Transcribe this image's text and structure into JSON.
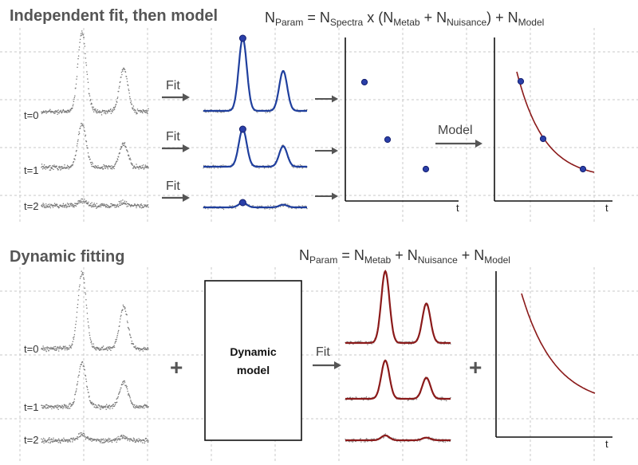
{
  "top": {
    "title": "Independent fit, then model",
    "equation": {
      "parts": [
        {
          "t": "N",
          "sub": false
        },
        {
          "t": "Param",
          "sub": true
        },
        {
          "t": " = N",
          "sub": false
        },
        {
          "t": "Spectra",
          "sub": true
        },
        {
          "t": " x (N",
          "sub": false
        },
        {
          "t": "Metab",
          "sub": true
        },
        {
          "t": " + N",
          "sub": false
        },
        {
          "t": "Nuisance",
          "sub": true
        },
        {
          "t": ") + N",
          "sub": false
        },
        {
          "t": "Model",
          "sub": true
        }
      ]
    },
    "time_labels": [
      "t=0",
      "t=1",
      "t=2"
    ],
    "fit_label": "Fit",
    "model_label": "Model",
    "axis_t_label": "t",
    "amplitudes": [
      1.0,
      0.72,
      0.12
    ],
    "colors": {
      "fit": "#1f3f9e",
      "model": "#8b1a1a",
      "noise": "#777777",
      "point": "#2a3fa8"
    }
  },
  "bottom": {
    "title": "Dynamic fitting",
    "equation": {
      "parts": [
        {
          "t": "N",
          "sub": false
        },
        {
          "t": "Param",
          "sub": true
        },
        {
          "t": " = N",
          "sub": false
        },
        {
          "t": "Metab",
          "sub": true
        },
        {
          "t": " + N",
          "sub": false
        },
        {
          "t": "Nuisance",
          "sub": true
        },
        {
          "t": " + N",
          "sub": false
        },
        {
          "t": "Model",
          "sub": true
        }
      ]
    },
    "time_labels": [
      "t=0",
      "t=1",
      "t=2"
    ],
    "plus_symbol": "+",
    "box_label_line1": "Dynamic",
    "box_label_line2": "model",
    "fit_label": "Fit",
    "axis_t_label": "t",
    "amplitudes": [
      1.0,
      0.72,
      0.12
    ]
  }
}
